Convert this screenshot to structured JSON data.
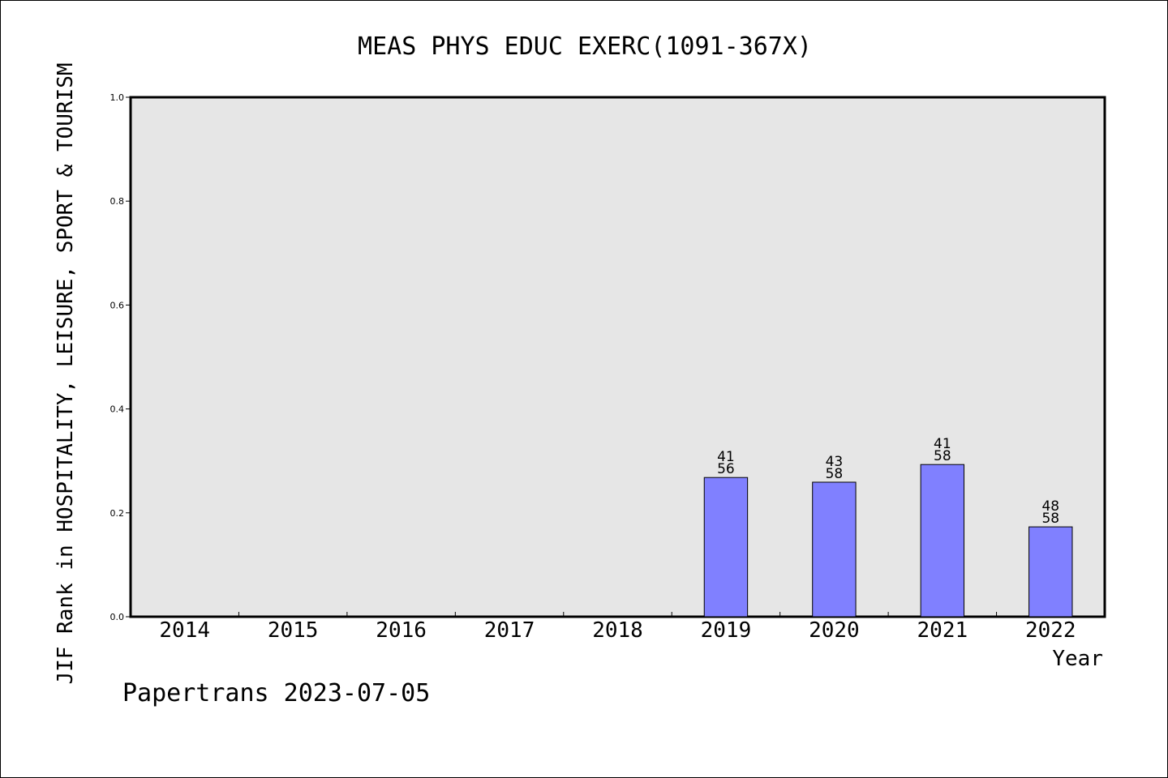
{
  "chart_data": {
    "type": "bar",
    "title": "MEAS PHYS EDUC EXERC(1091-367X)",
    "xlabel": "Year",
    "ylabel": "JIF Rank in HOSPITALITY, LEISURE, SPORT & TOURISM",
    "ylim": [
      0,
      1.0
    ],
    "yticks": [
      "0.0",
      "0.2",
      "0.4",
      "0.6",
      "0.8",
      "1.0"
    ],
    "categories": [
      "2014",
      "2015",
      "2016",
      "2017",
      "2018",
      "2019",
      "2020",
      "2021",
      "2022"
    ],
    "values": [
      null,
      null,
      null,
      null,
      null,
      0.268,
      0.259,
      0.293,
      0.173
    ],
    "labels_top": [
      "",
      "",
      "",
      "",
      "",
      "41",
      "43",
      "41",
      "48"
    ],
    "labels_bottom": [
      "",
      "",
      "",
      "",
      "",
      "56",
      "58",
      "58",
      "58"
    ],
    "grid": false,
    "colors": {
      "bar": "#8080ff",
      "plot_background": "#e6e6e6",
      "axis": "#000000"
    }
  },
  "footer": {
    "text": "Papertrans 2023-07-05"
  }
}
